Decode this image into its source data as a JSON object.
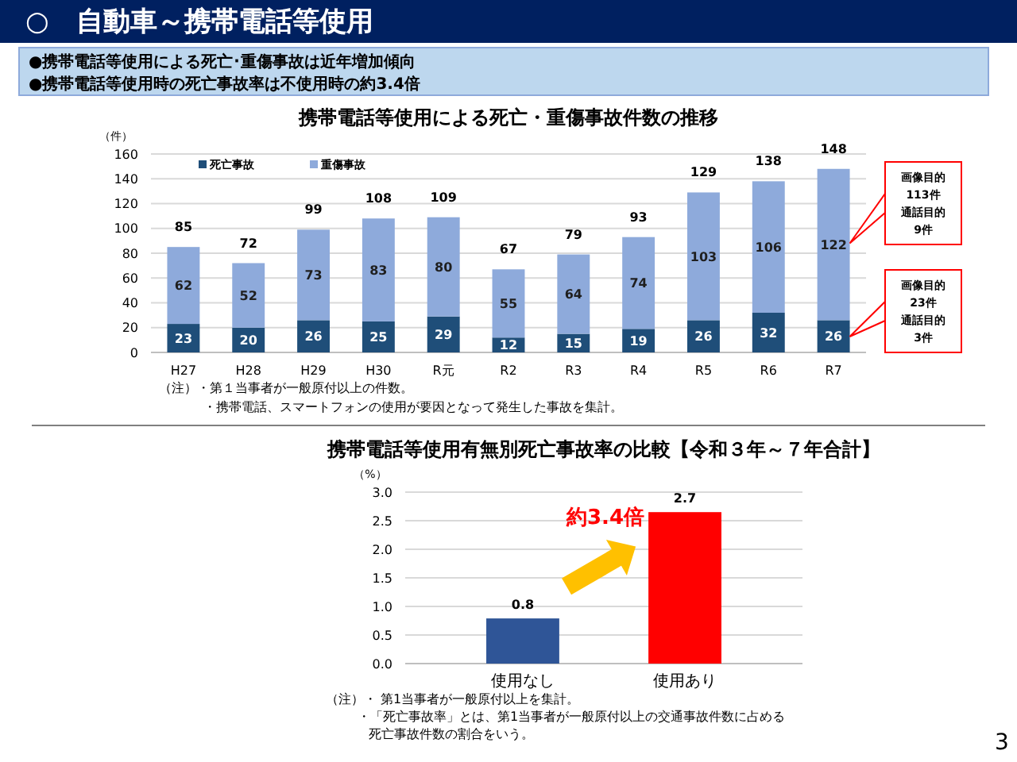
{
  "chart_data": [
    {
      "type": "bar",
      "title": "携帯電話等使用による死亡・重傷事故件数の推移",
      "ylabel": "（件）",
      "categories": [
        "H27",
        "H28",
        "H29",
        "H30",
        "R元",
        "R2",
        "R3",
        "R4",
        "R5",
        "R6",
        "R7"
      ],
      "series": [
        {
          "name": "死亡事故",
          "color": "#1f4e79",
          "values": [
            23,
            20,
            26,
            25,
            29,
            12,
            15,
            19,
            26,
            32,
            26
          ]
        },
        {
          "name": "重傷事故",
          "color": "#8eaadb",
          "values": [
            62,
            52,
            73,
            83,
            80,
            55,
            64,
            74,
            103,
            106,
            122
          ]
        }
      ],
      "stacked": true,
      "data_labels": true,
      "totals": [
        "85",
        "72",
        "99",
        "108",
        "109",
        "67",
        "79",
        "93",
        "129",
        "138",
        "148"
      ],
      "ylim": [
        0,
        160
      ],
      "yticks": [
        0,
        20,
        40,
        60,
        80,
        100,
        120,
        140,
        160
      ],
      "grid": "y",
      "legend": "top left",
      "annotations": [
        "○　自動車～携帯電話等使用",
        "●携帯電話等使用による死亡･重傷事故は近年増加傾向",
        "●携帯電話等使用時の死亡事故率は不使用時の約3.4倍",
        "（注）・第１当事者が一般原付以上の件数。",
        "・携帯電話、スマートフォンの使用が要因となって発生した事故を集計。",
        "画像目的",
        "113件",
        "通話目的",
        "9件",
        "画像目的",
        "23件",
        "通話目的",
        "3件"
      ]
    },
    {
      "type": "bar",
      "title": "携帯電話等使用有無別死亡事故率の比較【令和３年～７年合計】",
      "ylabel": "（%）",
      "categories": [
        "使用なし",
        "使用あり"
      ],
      "values": [
        0.79,
        2.65
      ],
      "colors": [
        "#2f5597",
        "#ff0000"
      ],
      "value_labels": [
        "0.8",
        "2.7"
      ],
      "ylim": [
        0,
        3
      ],
      "yticks": [
        {
          "value": 0,
          "label": "0.0"
        },
        {
          "value": 0.5,
          "label": "0.5"
        },
        {
          "value": 1,
          "label": "1.0"
        },
        {
          "value": 1.5,
          "label": "1.5"
        },
        {
          "value": 2,
          "label": "2.0"
        },
        {
          "value": 2.5,
          "label": "2.5"
        },
        {
          "value": 3,
          "label": "3.0"
        }
      ],
      "grid": "y",
      "annotations": [
        "約3.4倍",
        "（注）・ 第1当事者が一般原付以上を集計。",
        "・「死亡事故率」とは、第1当事者が一般原付以上の交通事故件数に占める",
        "死亡事故件数の割合をいう。",
        "3"
      ]
    }
  ]
}
